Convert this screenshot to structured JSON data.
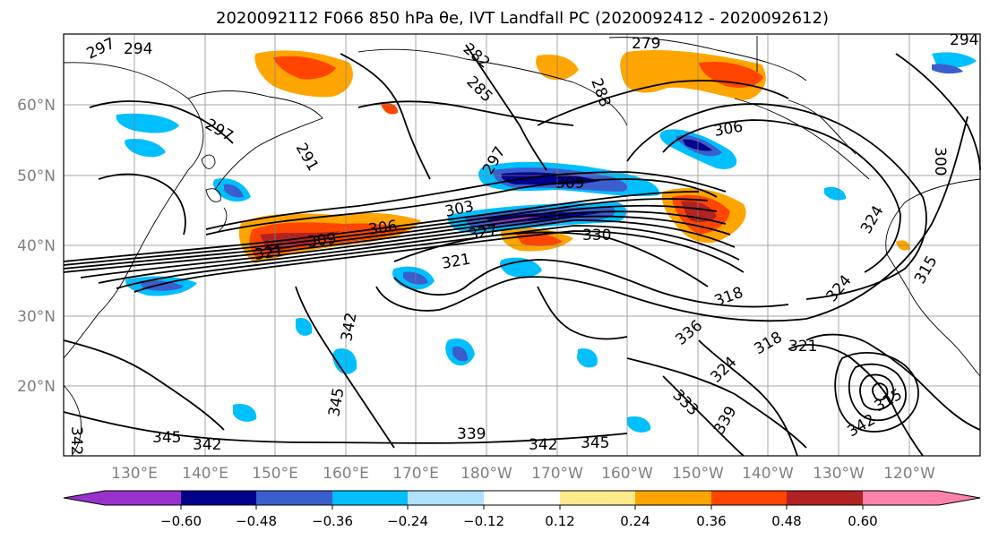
{
  "title": "2020092112 F066 850 hPa θe, IVT Landfall PC (2020092412 - 2020092612)",
  "map": {
    "lat_labels": [
      "60°N",
      "50°N",
      "40°N",
      "30°N",
      "20°N"
    ],
    "lon_labels": [
      "130°E",
      "140°E",
      "150°E",
      "160°E",
      "170°E",
      "180°W",
      "170°W",
      "160°W",
      "150°W",
      "140°W",
      "130°W",
      "120°W"
    ],
    "contour_labels": [
      "297",
      "294",
      "279",
      "282",
      "285",
      "288",
      "294",
      "297",
      "291",
      "297",
      "306",
      "309",
      "303",
      "300",
      "324",
      "306",
      "309",
      "321",
      "318",
      "330",
      "327",
      "315",
      "321",
      "324",
      "342",
      "345",
      "345",
      "342",
      "339",
      "333",
      "342",
      "345",
      "336",
      "339",
      "342",
      "324",
      "318",
      "321",
      "315",
      "342"
    ]
  },
  "colorbar": {
    "tick_labels": [
      "−0.60",
      "−0.48",
      "−0.36",
      "−0.24",
      "−0.12",
      "0.12",
      "0.24",
      "0.36",
      "0.48",
      "0.60"
    ],
    "colors": [
      "#9932cc",
      "#00008b",
      "#3a5fcd",
      "#00bfff",
      "#b0e2ff",
      "#ffffff",
      "#ffea8a",
      "#ffa500",
      "#ff4500",
      "#b22222",
      "#ff82ab"
    ]
  }
}
